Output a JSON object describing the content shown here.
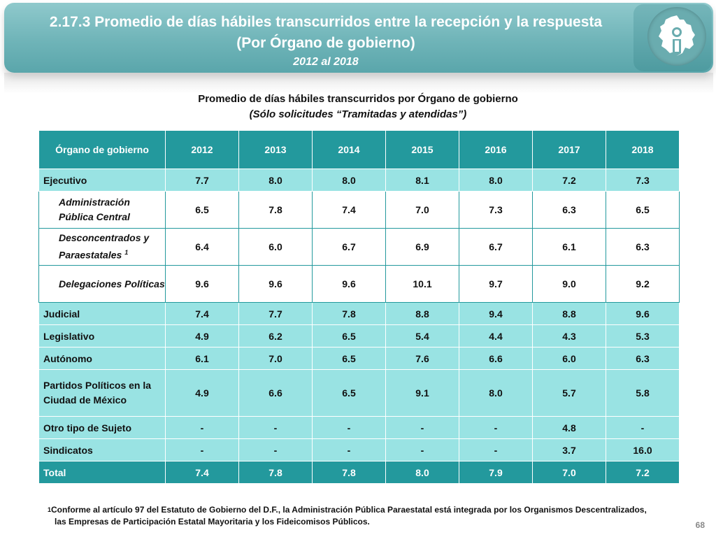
{
  "header": {
    "title_line1": "2.17.3 Promedio de días hábiles transcurridos entre la recepción y la respuesta",
    "title_line2": "(Por Órgano de gobierno)",
    "period": "2012 al 2018"
  },
  "table_title": {
    "line1": "Promedio de días hábiles transcurridos por Órgano de gobierno",
    "line2": "(Sólo solicitudes “Tramitadas y atendidas”)"
  },
  "table": {
    "header": {
      "organo": "Órgano de gobierno",
      "years": [
        "2012",
        "2013",
        "2014",
        "2015",
        "2016",
        "2017",
        "2018"
      ]
    },
    "rows": [
      {
        "label": "Ejecutivo",
        "values": [
          "7.7",
          "8.0",
          "8.0",
          "8.1",
          "8.0",
          "7.2",
          "7.3"
        ]
      },
      {
        "label": "Administración Pública Central",
        "values": [
          "6.5",
          "7.8",
          "7.4",
          "7.0",
          "7.3",
          "6.3",
          "6.5"
        ]
      },
      {
        "label": "Desconcentrados y Paraestatales",
        "sup": "1",
        "values": [
          "6.4",
          "6.0",
          "6.7",
          "6.9",
          "6.7",
          "6.1",
          "6.3"
        ]
      },
      {
        "label": "Delegaciones Políticas",
        "values": [
          "9.6",
          "9.6",
          "9.6",
          "10.1",
          "9.7",
          "9.0",
          "9.2"
        ]
      },
      {
        "label": "Judicial",
        "values": [
          "7.4",
          "7.7",
          "7.8",
          "8.8",
          "9.4",
          "8.8",
          "9.6"
        ]
      },
      {
        "label": "Legislativo",
        "values": [
          "4.9",
          "6.2",
          "6.5",
          "5.4",
          "4.4",
          "4.3",
          "5.3"
        ]
      },
      {
        "label": "Autónomo",
        "values": [
          "6.1",
          "7.0",
          "6.5",
          "7.6",
          "6.6",
          "6.0",
          "6.3"
        ]
      },
      {
        "label": "Partidos Políticos en la Ciudad de México",
        "values": [
          "4.9",
          "6.6",
          "6.5",
          "9.1",
          "8.0",
          "5.7",
          "5.8"
        ]
      },
      {
        "label": "Otro tipo de Sujeto",
        "values": [
          "-",
          "-",
          "-",
          "-",
          "-",
          "4.8",
          "-"
        ]
      },
      {
        "label": "Sindicatos",
        "values": [
          "-",
          "-",
          "-",
          "-",
          "-",
          "3.7",
          "16.0"
        ]
      },
      {
        "label": "Total",
        "values": [
          "7.4",
          "7.8",
          "7.8",
          "8.0",
          "7.9",
          "7.0",
          "7.2"
        ]
      }
    ]
  },
  "footnote": {
    "marker": "1",
    "line1": "Conforme al artículo 97 del Estatuto de Gobierno del D.F., la Administración Pública Paraestatal está integrada por los Organismos Descentralizados,",
    "line2": "las Empresas de Participación Estatal Mayoritaria y los Fideicomisos Públicos."
  },
  "page_number": "68",
  "colors": {
    "header_bg": "#6fb4b8",
    "table_header": "#23999d",
    "row_cyan": "#99e3e3"
  },
  "logo": {
    "icon": "cdmx-map-info-icon"
  }
}
